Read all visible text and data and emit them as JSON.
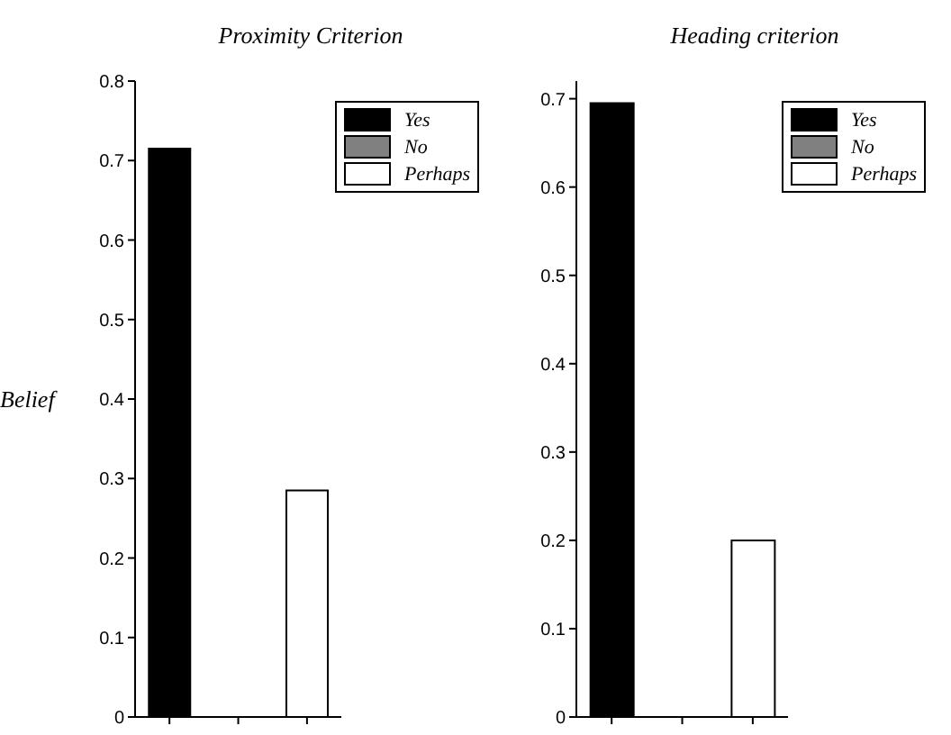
{
  "chart_data": [
    {
      "type": "bar",
      "title": "Proximity Criterion",
      "ylabel": "Belief",
      "categories": [
        null,
        null,
        null
      ],
      "stacked": true,
      "ylim": [
        0,
        0.8
      ],
      "yticks": [
        0,
        0.1,
        0.2,
        0.3,
        0.4,
        0.5,
        0.6,
        0.7,
        0.8
      ],
      "legend": "top right",
      "grid": false,
      "series": [
        {
          "name": "Yes",
          "color": "#000000",
          "values": [
            0.715,
            null,
            null
          ]
        },
        {
          "name": "No",
          "color": "#808080",
          "values": [
            null,
            0,
            null
          ]
        },
        {
          "name": "Perhaps",
          "color": "#ffffff",
          "values": [
            null,
            null,
            0.285
          ]
        }
      ]
    },
    {
      "type": "bar",
      "title": "Heading criterion",
      "categories": [
        null,
        null,
        null
      ],
      "stacked": true,
      "ylim": [
        0,
        0.72
      ],
      "yticks": [
        0,
        0.1,
        0.2,
        0.3,
        0.4,
        0.5,
        0.6,
        0.7
      ],
      "legend": "top right",
      "grid": false,
      "series": [
        {
          "name": "Yes",
          "color": "#000000",
          "values": [
            0.695,
            null,
            null
          ]
        },
        {
          "name": "No",
          "color": "#808080",
          "values": [
            null,
            0,
            null
          ]
        },
        {
          "name": "Perhaps",
          "color": "#ffffff",
          "values": [
            null,
            null,
            0.2
          ]
        }
      ]
    }
  ]
}
